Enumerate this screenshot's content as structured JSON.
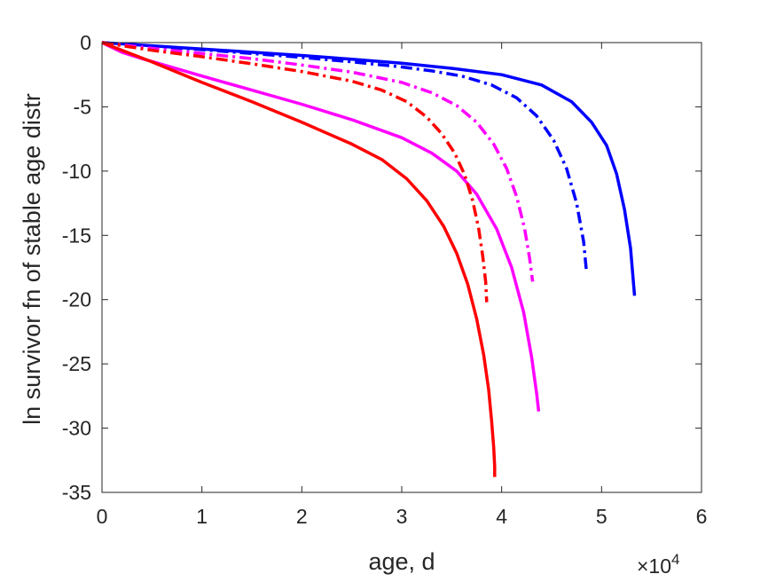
{
  "chart_data": {
    "type": "line",
    "xlabel": "age, d",
    "ylabel": "ln survivor fn of stable age distr",
    "x_exponent_label": "×10",
    "x_exponent_power": "4",
    "xlim": [
      0,
      60000
    ],
    "ylim": [
      -35,
      0
    ],
    "xticks": [
      0,
      10000,
      20000,
      30000,
      40000,
      50000,
      60000
    ],
    "xtick_labels": [
      "0",
      "1",
      "2",
      "3",
      "4",
      "5",
      "6"
    ],
    "yticks": [
      0,
      -5,
      -10,
      -15,
      -20,
      -25,
      -30,
      -35
    ],
    "ytick_labels": [
      "0",
      "-5",
      "-10",
      "-15",
      "-20",
      "-25",
      "-30",
      "-35"
    ],
    "grid": false,
    "legend": "none",
    "series": [
      {
        "color": "#0000ff",
        "dash": "solid",
        "x": [
          0,
          5000,
          10000,
          15000,
          20000,
          25000,
          30000,
          35000,
          40000,
          44000,
          47000,
          49000,
          50500,
          51500,
          52300,
          52900,
          53300
        ],
        "y": [
          0,
          -0.25,
          -0.5,
          -0.75,
          -1.0,
          -1.3,
          -1.6,
          -2.0,
          -2.5,
          -3.3,
          -4.6,
          -6.2,
          -8.0,
          -10.2,
          -13.0,
          -16.0,
          -19.7
        ]
      },
      {
        "color": "#0000ff",
        "dash": "dashdot",
        "x": [
          0,
          5000,
          10000,
          15000,
          20000,
          25000,
          30000,
          33000,
          36000,
          39000,
          41500,
          43500,
          45200,
          46500,
          47500,
          48200,
          48500
        ],
        "y": [
          0,
          -0.28,
          -0.55,
          -0.85,
          -1.15,
          -1.5,
          -1.9,
          -2.2,
          -2.6,
          -3.3,
          -4.3,
          -5.7,
          -7.6,
          -9.8,
          -12.5,
          -15.5,
          -17.9
        ]
      },
      {
        "color": "#ff00ff",
        "dash": "solid",
        "x": [
          0,
          2000,
          4000,
          6000,
          10000,
          15000,
          20000,
          25000,
          30000,
          33000,
          35500,
          37500,
          39500,
          41000,
          42200,
          43000,
          43500,
          43700
        ],
        "y": [
          0,
          -0.75,
          -1.25,
          -1.7,
          -2.6,
          -3.7,
          -4.8,
          -6.0,
          -7.4,
          -8.6,
          -10.0,
          -11.8,
          -14.5,
          -17.5,
          -21.0,
          -24.5,
          -27.3,
          -28.7
        ]
      },
      {
        "color": "#ff00ff",
        "dash": "dashdot",
        "x": [
          0,
          5000,
          10000,
          15000,
          20000,
          25000,
          30000,
          33000,
          35500,
          37500,
          39200,
          40500,
          41500,
          42300,
          42800,
          43100
        ],
        "y": [
          0,
          -0.45,
          -0.85,
          -1.25,
          -1.75,
          -2.3,
          -3.1,
          -3.9,
          -4.9,
          -6.2,
          -7.9,
          -9.8,
          -12.0,
          -14.5,
          -16.8,
          -18.6
        ]
      },
      {
        "color": "#ff0000",
        "dash": "solid",
        "x": [
          0,
          5000,
          10000,
          15000,
          20000,
          25000,
          28000,
          30500,
          32500,
          34200,
          35500,
          36600,
          37500,
          38200,
          38700,
          39000,
          39200,
          39300,
          39300
        ],
        "y": [
          0,
          -1.5,
          -3.1,
          -4.6,
          -6.2,
          -7.9,
          -9.1,
          -10.6,
          -12.3,
          -14.3,
          -16.4,
          -18.8,
          -21.5,
          -24.3,
          -27.0,
          -29.5,
          -31.5,
          -33.0,
          -33.8
        ]
      },
      {
        "color": "#ff0000",
        "dash": "dashdot",
        "x": [
          0,
          5000,
          10000,
          15000,
          20000,
          25000,
          28000,
          30500,
          32500,
          34000,
          35300,
          36300,
          37100,
          37700,
          38100,
          38400,
          38500
        ],
        "y": [
          0,
          -0.6,
          -1.1,
          -1.65,
          -2.25,
          -3.0,
          -3.7,
          -4.6,
          -5.8,
          -7.1,
          -8.6,
          -10.3,
          -12.3,
          -14.5,
          -16.6,
          -18.6,
          -20.2
        ]
      }
    ]
  }
}
